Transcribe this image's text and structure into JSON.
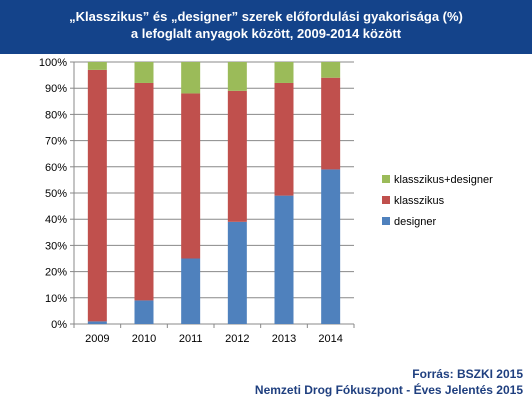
{
  "header": {
    "title_line1": "„Klasszikus” és „designer” szerek előfordulási gyakorisága (%)",
    "title_line2": "a lefoglalt anyagok között, 2009-2014  között"
  },
  "footer": {
    "source": "Forrás: BSZKI 2015",
    "report": "Nemzeti Drog Fókuszpont - Éves Jelentés 2015"
  },
  "chart_data": {
    "type": "bar",
    "stacked": true,
    "normalized_percent": true,
    "categories": [
      "2009",
      "2010",
      "2011",
      "2012",
      "2013",
      "2014"
    ],
    "series": [
      {
        "name": "designer",
        "color": "#4f81bd",
        "values": [
          1,
          9,
          25,
          39,
          49,
          59
        ]
      },
      {
        "name": "klasszikus",
        "color": "#c0504d",
        "values": [
          96,
          83,
          63,
          50,
          43,
          35
        ]
      },
      {
        "name": "klasszikus+designer",
        "color": "#9bbb59",
        "values": [
          3,
          8,
          12,
          11,
          8,
          6
        ]
      }
    ],
    "ylim": [
      0,
      100
    ],
    "yticks": [
      "0%",
      "10%",
      "20%",
      "30%",
      "40%",
      "50%",
      "60%",
      "70%",
      "80%",
      "90%",
      "100%"
    ],
    "grid": true,
    "legend_position": "right",
    "legend_order": [
      "klasszikus+designer",
      "klasszikus",
      "designer"
    ]
  }
}
